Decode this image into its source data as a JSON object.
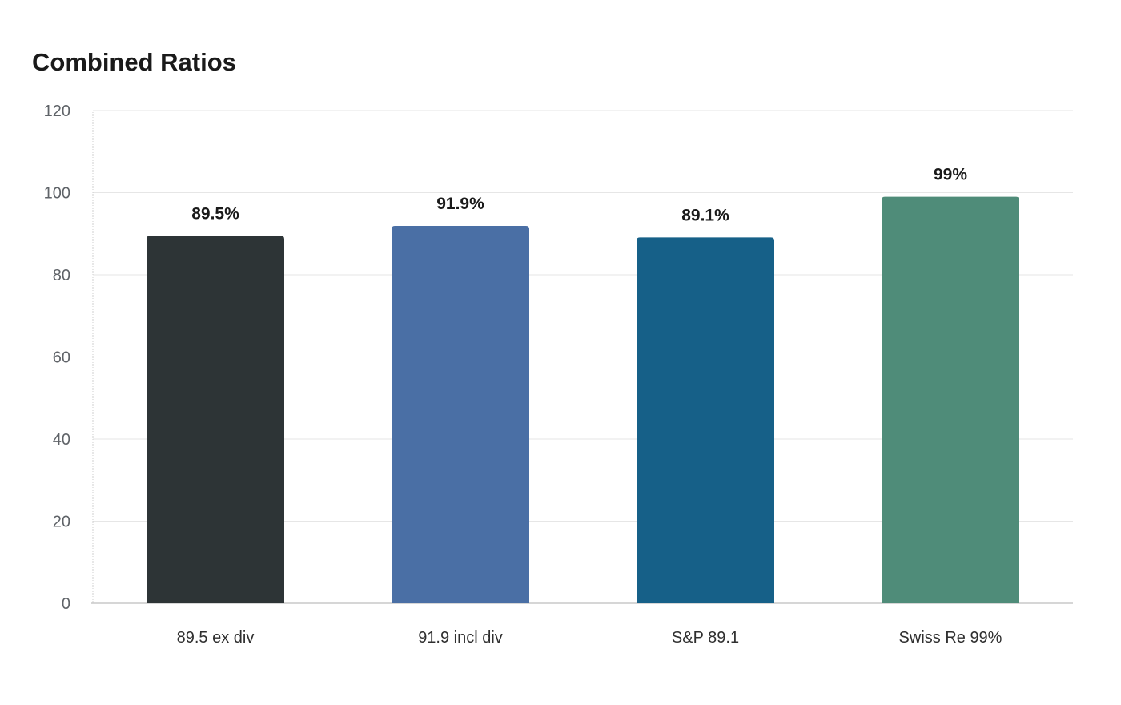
{
  "chart_data": {
    "type": "bar",
    "title": "Combined Ratios",
    "xlabel": "",
    "ylabel": "",
    "categories": [
      "89.5 ex div",
      "91.9 incl div",
      "S&P 89.1",
      "Swiss Re 99%"
    ],
    "values": [
      89.5,
      91.9,
      89.1,
      99
    ],
    "value_labels": [
      "89.5%",
      "91.9%",
      "89.1%",
      "99%"
    ],
    "colors": [
      "#2d3436",
      "#4a6fa5",
      "#166088",
      "#4f8c79"
    ],
    "ylim": [
      0,
      120
    ],
    "yticks": [
      0,
      20,
      40,
      60,
      80,
      100,
      120
    ],
    "grid": true,
    "legend": "none"
  }
}
